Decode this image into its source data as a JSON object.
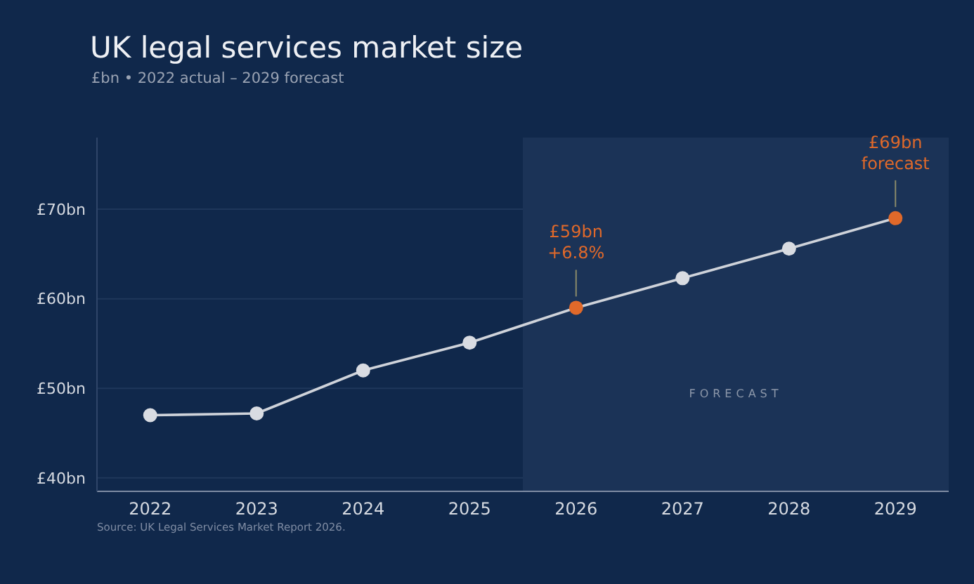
{
  "chart_data": {
    "type": "line",
    "title": "UK legal services market size",
    "subtitle": "£bn • 2022 actual – 2029 forecast",
    "x": [
      2022,
      2023,
      2024,
      2025,
      2026,
      2027,
      2028,
      2029
    ],
    "series": [
      {
        "color": "#cfd3da",
        "values": [
          47.0,
          47.2,
          52.0,
          55.1,
          59.0,
          62.3,
          65.6,
          69.0
        ],
        "colors": [
          "#d9dce2",
          "#d9dce2",
          "#d9dce2",
          "#d9dce2",
          "#e0692a",
          "#d9dce2",
          "#d9dce2",
          "#e0692a"
        ]
      }
    ],
    "xlim": [
      2021.5,
      2029.5
    ],
    "xticks": [
      2022,
      2023,
      2024,
      2025,
      2026,
      2027,
      2028,
      2029
    ],
    "ylim": [
      38.5,
      78
    ],
    "yticks": [
      {
        "value": 40,
        "label": "£40bn"
      },
      {
        "value": 50,
        "label": "£50bn"
      },
      {
        "value": 60,
        "label": "£60bn"
      },
      {
        "value": 70,
        "label": "£70bn"
      }
    ],
    "grid": "y",
    "marker": "circle",
    "line_style": "solid",
    "bands": [
      {
        "axis": "x",
        "from": 2025.5,
        "to": 2029.5,
        "label": "FORECAST",
        "color": "#1b3357"
      }
    ],
    "annotations": [
      {
        "text": "£59bn +6.8%",
        "x": 2026,
        "y": 59
      },
      {
        "text": "£69bn forecast",
        "x": 2029,
        "y": 69
      },
      "Source: UK Legal Services Market Report 2026."
    ]
  }
}
